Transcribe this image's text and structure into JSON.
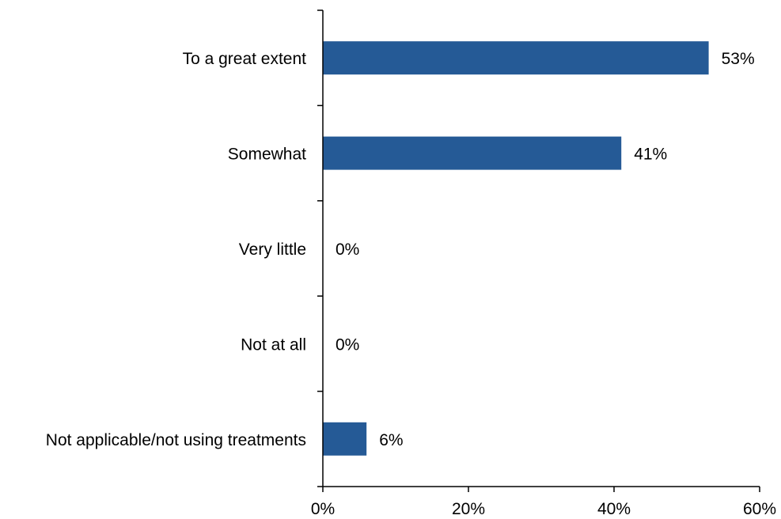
{
  "chart_data": {
    "type": "bar",
    "orientation": "horizontal",
    "title": "",
    "xlabel": "",
    "ylabel": "",
    "categories": [
      "To a great extent",
      "Somewhat",
      "Very little",
      "Not at all",
      "Not applicable/not using treatments"
    ],
    "values": [
      53,
      41,
      0,
      0,
      6
    ],
    "data_labels": [
      "53%",
      "41%",
      "0%",
      "0%",
      "6%"
    ],
    "xlim": [
      0,
      60
    ],
    "x_ticks": [
      0,
      20,
      40,
      60
    ],
    "x_tick_labels": [
      "0%",
      "20%",
      "40%",
      "60%"
    ],
    "grid": false,
    "legend": "none",
    "bar_color": "#255a96"
  }
}
